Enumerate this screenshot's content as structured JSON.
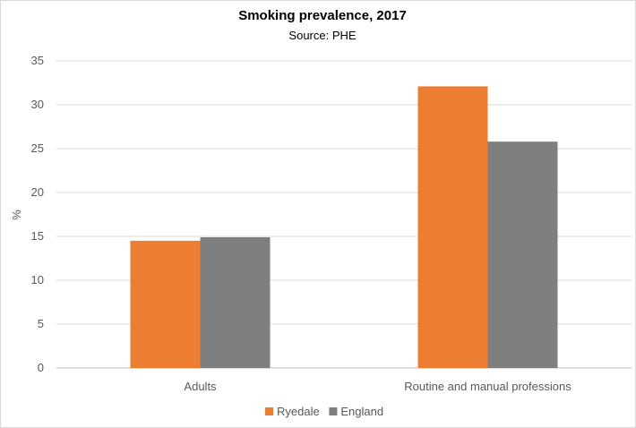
{
  "chart_data": {
    "type": "bar",
    "title": "Smoking prevalence, 2017",
    "subtitle": "Source: PHE",
    "xlabel": "",
    "ylabel": "%",
    "ylim": [
      0,
      35
    ],
    "yticks": [
      0,
      5,
      10,
      15,
      20,
      25,
      30,
      35
    ],
    "categories": [
      "Adults",
      "Routine and manual professions"
    ],
    "series": [
      {
        "name": "Ryedale",
        "color": "#ed7d31",
        "values": [
          14.5,
          32.1
        ]
      },
      {
        "name": "England",
        "color": "#7f7f7f",
        "values": [
          14.9,
          25.8
        ]
      }
    ],
    "grid": true,
    "legend": "bottom"
  }
}
